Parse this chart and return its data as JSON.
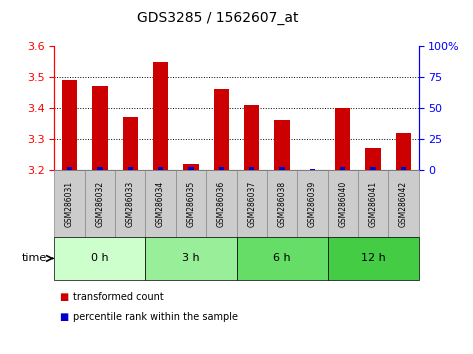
{
  "title": "GDS3285 / 1562607_at",
  "samples": [
    "GSM286031",
    "GSM286032",
    "GSM286033",
    "GSM286034",
    "GSM286035",
    "GSM286036",
    "GSM286037",
    "GSM286038",
    "GSM286039",
    "GSM286040",
    "GSM286041",
    "GSM286042"
  ],
  "transformed_count": [
    3.49,
    3.47,
    3.37,
    3.55,
    3.22,
    3.46,
    3.41,
    3.36,
    3.2,
    3.4,
    3.27,
    3.32
  ],
  "percentile_rank": [
    2,
    2,
    2,
    2,
    2,
    2,
    2,
    2,
    1,
    2,
    2,
    2
  ],
  "ylim_left": [
    3.2,
    3.6
  ],
  "ylim_right": [
    0,
    100
  ],
  "yticks_left": [
    3.2,
    3.3,
    3.4,
    3.5,
    3.6
  ],
  "yticks_right": [
    0,
    25,
    50,
    75,
    100
  ],
  "bar_color_red": "#cc0000",
  "bar_color_blue": "#0000cc",
  "baseline": 3.2,
  "group_defs": [
    {
      "label": "0 h",
      "start": 0,
      "end": 3,
      "color": "#ccffcc"
    },
    {
      "label": "3 h",
      "start": 3,
      "end": 6,
      "color": "#99ee99"
    },
    {
      "label": "6 h",
      "start": 6,
      "end": 9,
      "color": "#66dd66"
    },
    {
      "label": "12 h",
      "start": 9,
      "end": 12,
      "color": "#44cc44"
    }
  ],
  "sample_box_color": "#cccccc",
  "sample_box_edge": "#888888",
  "background_color": "#ffffff",
  "grid_ticks": [
    3.3,
    3.4,
    3.5
  ]
}
